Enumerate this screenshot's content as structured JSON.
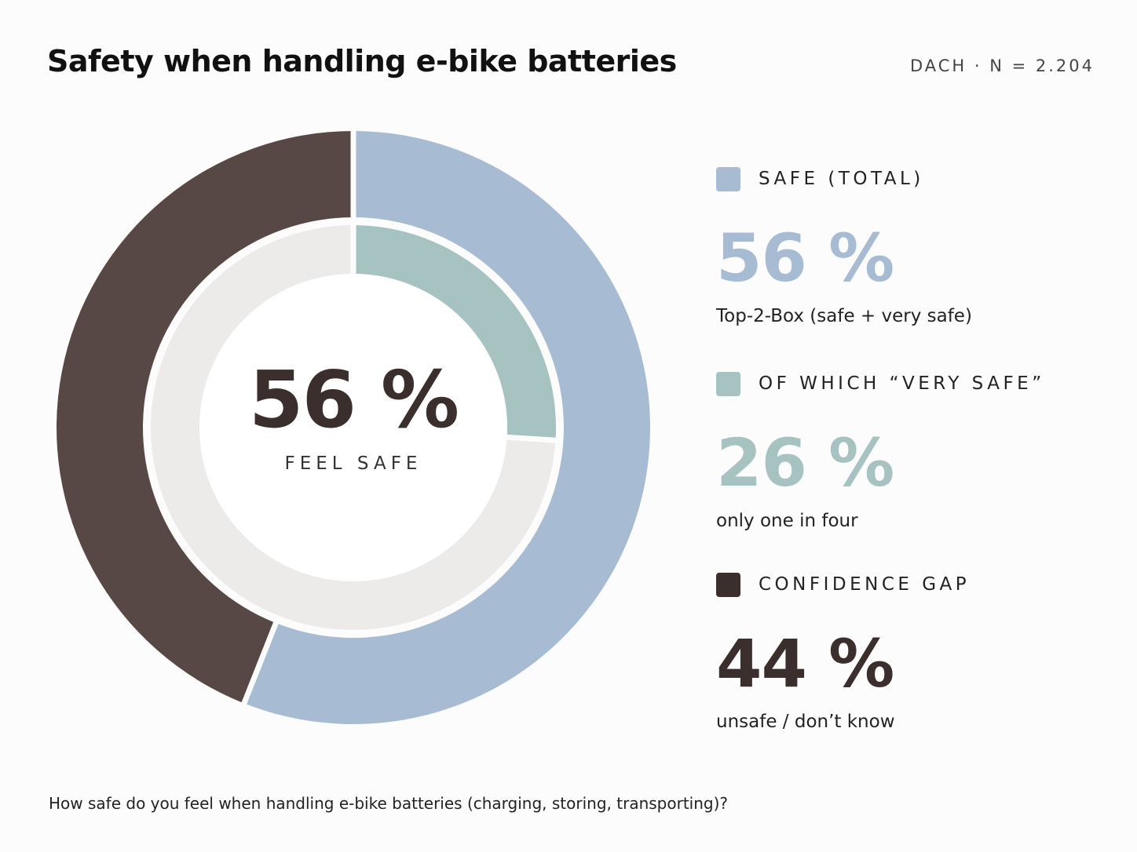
{
  "header": {
    "title": "Safety when handling e-bike batteries",
    "meta": "DACH · N = 2.204"
  },
  "center": {
    "value": "56 %",
    "label": "FEEL SAFE"
  },
  "legend": [
    {
      "label": "SAFE (TOTAL)",
      "value": "56 %",
      "sub": "Top-2-Box (safe + very safe)",
      "color": "#a7bcd2"
    },
    {
      "label": "OF WHICH “VERY SAFE”",
      "value": "26 %",
      "sub": "only one in four",
      "color": "#a6c3c1"
    },
    {
      "label": "CONFIDENCE GAP",
      "value": "44 %",
      "sub": "unsafe / don’t know",
      "color": "#3b2f2d"
    }
  ],
  "footnote": "How safe do you feel when handling e-bike batteries (charging, storing, transporting)?",
  "chart_data": {
    "type": "pie",
    "rings": [
      {
        "ring": "outer",
        "slices": [
          {
            "name": "Safe (total)",
            "value": 56,
            "color": "#a7bcd2"
          },
          {
            "name": "Confidence gap",
            "value": 44,
            "color": "#574845"
          }
        ]
      },
      {
        "ring": "inner",
        "slices": [
          {
            "name": "Of which very safe",
            "value": 26,
            "color": "#a6c3c1"
          },
          {
            "name": "Remainder",
            "value": 74,
            "color": "#ecebea"
          }
        ]
      }
    ]
  }
}
